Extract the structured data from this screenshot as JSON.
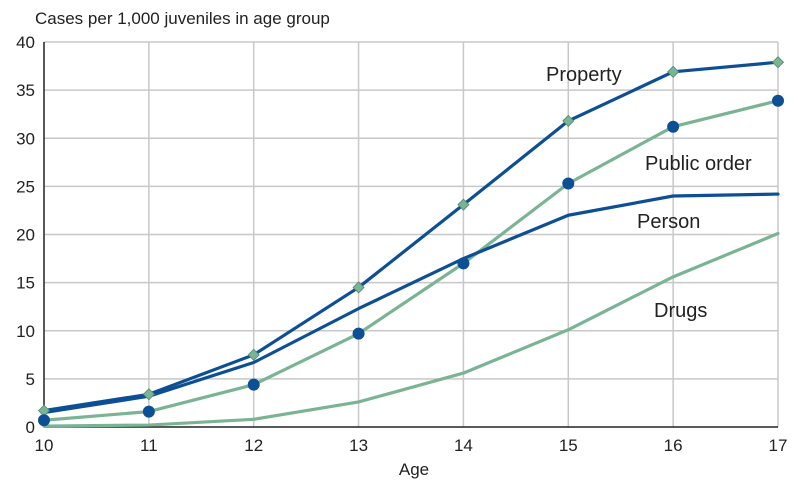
{
  "chart_data": {
    "type": "line",
    "ylabel": "Cases per 1,000 juveniles in age group",
    "xlabel": "Age",
    "x": [
      10,
      11,
      12,
      13,
      14,
      15,
      16,
      17
    ],
    "xlim": [
      10,
      17
    ],
    "ylim": [
      0,
      40
    ],
    "yticks": [
      0,
      5,
      10,
      15,
      20,
      25,
      30,
      35,
      40
    ],
    "grid": true,
    "legend": "inline labels",
    "series": [
      {
        "name": "Property",
        "values": [
          1.7,
          3.4,
          7.5,
          14.5,
          23.1,
          31.8,
          36.9,
          37.9
        ],
        "color": "#0d4f94",
        "marker": "diamond",
        "marker_color": "#7ab495"
      },
      {
        "name": "Public order",
        "values": [
          0.7,
          1.6,
          4.4,
          9.7,
          17.0,
          25.3,
          31.2,
          33.9
        ],
        "color": "#7ab495",
        "marker": "circle",
        "marker_color": "#0d4f94"
      },
      {
        "name": "Person",
        "values": [
          1.5,
          3.2,
          6.7,
          12.3,
          17.5,
          22.0,
          24.0,
          24.2
        ],
        "color": "#0d4f94",
        "marker": "none"
      },
      {
        "name": "Drugs",
        "values": [
          0.1,
          0.2,
          0.8,
          2.6,
          5.6,
          10.1,
          15.6,
          20.1
        ],
        "color": "#7ab495",
        "marker": "none"
      }
    ]
  }
}
